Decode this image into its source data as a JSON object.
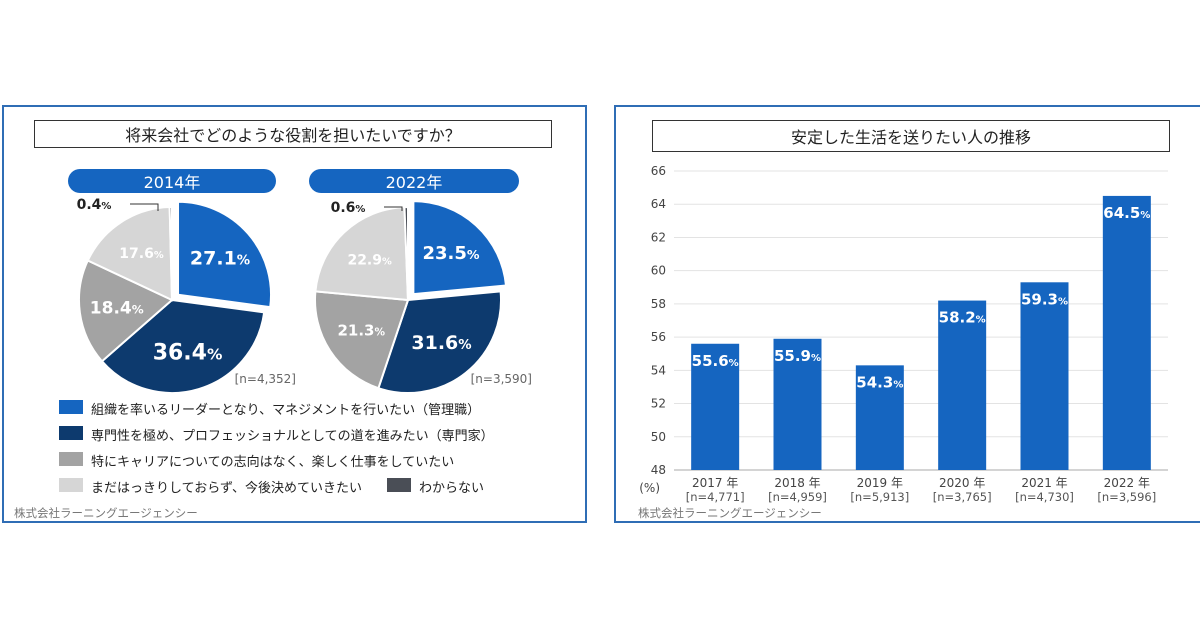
{
  "left_panel": {
    "title": "将来会社でどのような役割を担いたいですか？",
    "credit": "株式会社ラーニングエージェンシー",
    "legend": [
      {
        "label": "組織を率いるリーダーとなり、マネジメントを行いたい（管理職）",
        "color": "#1565c0"
      },
      {
        "label": "専門性を極め、プロフェッショナルとしての道を進みたい（専門家）",
        "color": "#0d3a6e"
      },
      {
        "label": "特にキャリアについての志向はなく、楽しく仕事をしていたい",
        "color": "#a3a3a3"
      },
      {
        "label": "まだはっきりしておらず、今後決めていきたい",
        "color": "#d6d6d6"
      },
      {
        "label": "わからない",
        "color": "#4a4e56"
      }
    ]
  },
  "right_panel": {
    "title": "安定した生活を送りたい人の推移",
    "credit": "株式会社ラーニングエージェンシー"
  },
  "chart_data": [
    {
      "type": "pie",
      "title": "2014年",
      "n_label": "[n=4,352]",
      "categories": [
        "管理職",
        "専門家",
        "特に志向なし",
        "まだはっきりしておらず",
        "わからない"
      ],
      "values": [
        27.1,
        36.4,
        18.4,
        17.6,
        0.4
      ],
      "labels": [
        "27.1",
        "36.4",
        "18.4",
        "17.6",
        "0.4"
      ],
      "colors": [
        "#1565c0",
        "#0d3a6e",
        "#a3a3a3",
        "#d6d6d6",
        "#4a4e56"
      ]
    },
    {
      "type": "pie",
      "title": "2022年",
      "n_label": "[n=3,590]",
      "categories": [
        "管理職",
        "専門家",
        "特に志向なし",
        "まだはっきりしておらず",
        "わからない"
      ],
      "values": [
        23.5,
        31.6,
        21.3,
        22.9,
        0.6
      ],
      "labels": [
        "23.5",
        "31.6",
        "21.3",
        "22.9",
        "0.6"
      ],
      "colors": [
        "#1565c0",
        "#0d3a6e",
        "#a3a3a3",
        "#d6d6d6",
        "#4a4e56"
      ]
    },
    {
      "type": "bar",
      "title": "安定した生活を送りたい人の推移",
      "unit_label": "(%)",
      "categories": [
        "2017 年",
        "2018 年",
        "2019 年",
        "2020 年",
        "2021 年",
        "2022 年"
      ],
      "n_labels": [
        "[n=4,771]",
        "[n=4,959]",
        "[n=5,913]",
        "[n=3,765]",
        "[n=4,730]",
        "[n=3,596]"
      ],
      "values": [
        55.6,
        55.9,
        54.3,
        58.2,
        59.3,
        64.5
      ],
      "value_labels": [
        "55.6",
        "55.9",
        "54.3",
        "58.2",
        "59.3",
        "64.5"
      ],
      "ylim": [
        48,
        66
      ],
      "yticks": [
        48,
        50,
        52,
        54,
        56,
        58,
        60,
        62,
        64,
        66
      ],
      "color": "#1565c0",
      "grid": true
    }
  ]
}
